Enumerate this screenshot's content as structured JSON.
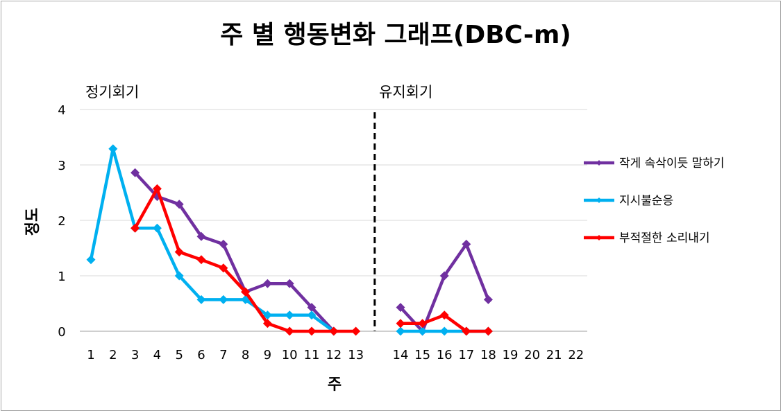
{
  "chart_data": {
    "type": "line",
    "title": "주 별 행동변화 그래프(DBC-m)",
    "xlabel": "주",
    "ylabel": "정도",
    "ylim": [
      0,
      4
    ],
    "yticks": [
      "0",
      "1",
      "2",
      "3",
      "4"
    ],
    "categories": [
      "1",
      "2",
      "3",
      "4",
      "5",
      "6",
      "7",
      "8",
      "9",
      "10",
      "11",
      "12",
      "13",
      "14",
      "15",
      "16",
      "17",
      "18",
      "19",
      "20",
      "21",
      "22"
    ],
    "phase_labels": [
      "정기회기",
      "유지회기"
    ],
    "legend_position": "right",
    "gridlines": true,
    "series": [
      {
        "name": "작게 속삭이듯 말하기",
        "color": "#7030a0",
        "segments": [
          {
            "x": [
              "3",
              "4",
              "5",
              "6",
              "7",
              "8",
              "9",
              "10",
              "11",
              "12"
            ],
            "y": [
              2.86,
              2.43,
              2.29,
              1.71,
              1.57,
              0.71,
              0.86,
              0.86,
              0.43,
              0
            ]
          },
          {
            "x": [
              "14",
              "15",
              "16",
              "17",
              "18"
            ],
            "y": [
              0.43,
              0,
              1.0,
              1.57,
              0.57
            ]
          }
        ]
      },
      {
        "name": "지시불순응",
        "color": "#00b0f0",
        "segments": [
          {
            "x": [
              "1",
              "2",
              "3",
              "4",
              "5",
              "6",
              "7",
              "8",
              "9",
              "10",
              "11",
              "12"
            ],
            "y": [
              1.29,
              3.29,
              1.86,
              1.86,
              1.0,
              0.57,
              0.57,
              0.57,
              0.29,
              0.29,
              0.29,
              0
            ]
          },
          {
            "x": [
              "14",
              "15",
              "16",
              "17",
              "18"
            ],
            "y": [
              0,
              0,
              0,
              0,
              0
            ]
          }
        ]
      },
      {
        "name": "부적절한 소리내기",
        "color": "#ff0000",
        "segments": [
          {
            "x": [
              "3",
              "4",
              "5",
              "6",
              "7",
              "8",
              "9",
              "10",
              "11",
              "12",
              "13"
            ],
            "y": [
              1.86,
              2.57,
              1.43,
              1.29,
              1.14,
              0.71,
              0.14,
              0,
              0,
              0,
              0
            ]
          },
          {
            "x": [
              "14",
              "15",
              "16",
              "17",
              "18"
            ],
            "y": [
              0.14,
              0.14,
              0.29,
              0,
              0
            ]
          }
        ]
      }
    ]
  }
}
